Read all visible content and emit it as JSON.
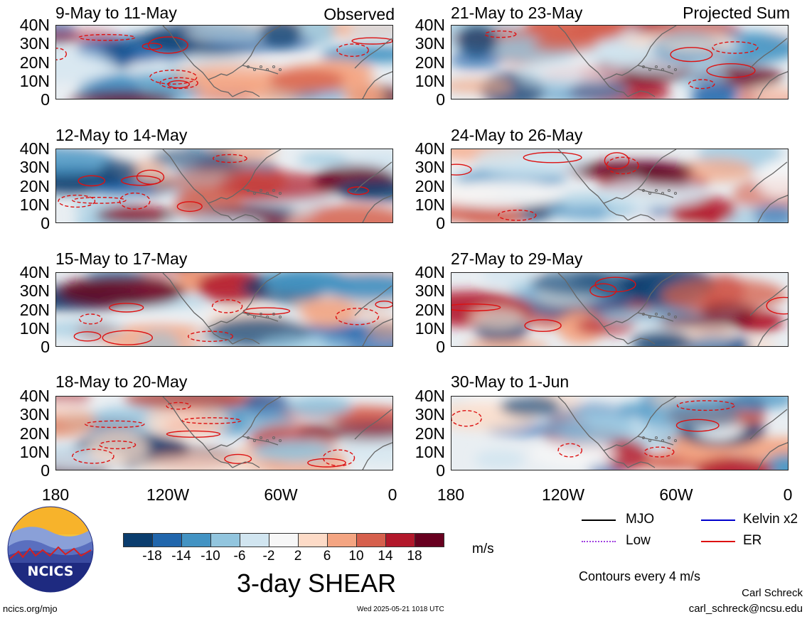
{
  "panels": [
    {
      "id": "p1",
      "title": "9-May to 11-May",
      "tag": "Observed",
      "column": "left",
      "seed": 3
    },
    {
      "id": "p2",
      "title": "12-May to 14-May",
      "tag": "",
      "column": "left",
      "seed": 7
    },
    {
      "id": "p3",
      "title": "15-May to 17-May",
      "tag": "",
      "column": "left",
      "seed": 11
    },
    {
      "id": "p4",
      "title": "18-May to 20-May",
      "tag": "",
      "column": "left",
      "seed": 17
    },
    {
      "id": "p5",
      "title": "21-May to 23-May",
      "tag": "Projected Sum",
      "column": "right",
      "seed": 23
    },
    {
      "id": "p6",
      "title": "24-May to 26-May",
      "tag": "",
      "column": "right",
      "seed": 29
    },
    {
      "id": "p7",
      "title": "27-May to 29-May",
      "tag": "",
      "column": "right",
      "seed": 31
    },
    {
      "id": "p8",
      "title": "30-May to 1-Jun",
      "tag": "",
      "column": "right",
      "seed": 37
    }
  ],
  "lat_labels": [
    "40N",
    "30N",
    "20N",
    "10N",
    "0"
  ],
  "lon_labels": [
    "180",
    "120W",
    "60W",
    "0"
  ],
  "colorbar": {
    "ticks": [
      "-18",
      "-14",
      "-10",
      "-6",
      "-2",
      "2",
      "6",
      "10",
      "14",
      "18"
    ],
    "unit": "m/s",
    "colors": [
      "#0b3d6e",
      "#2166ac",
      "#4393c3",
      "#92c5de",
      "#d1e5f0",
      "#f7f7f7",
      "#fddbc7",
      "#f4a582",
      "#d6604d",
      "#b2182b",
      "#67001f"
    ]
  },
  "legend": [
    {
      "label": "MJO",
      "color": "#000000",
      "style": "solid"
    },
    {
      "label": "Kelvin x2",
      "color": "#0000cc",
      "style": "solid"
    },
    {
      "label": "Low",
      "color": "#a040e0",
      "style": "dotted"
    },
    {
      "label": "ER",
      "color": "#dd1111",
      "style": "solid"
    }
  ],
  "title": "3-day SHEAR",
  "contours_note": "Contours every 4 m/s",
  "logo_text": "NCICS",
  "footer_left": "ncics.org/mjo",
  "footer_center": "Wed 2025-05-21 1018 UTC",
  "author": "Carl Schreck",
  "email": "carl_schreck@ncsu.edu"
}
